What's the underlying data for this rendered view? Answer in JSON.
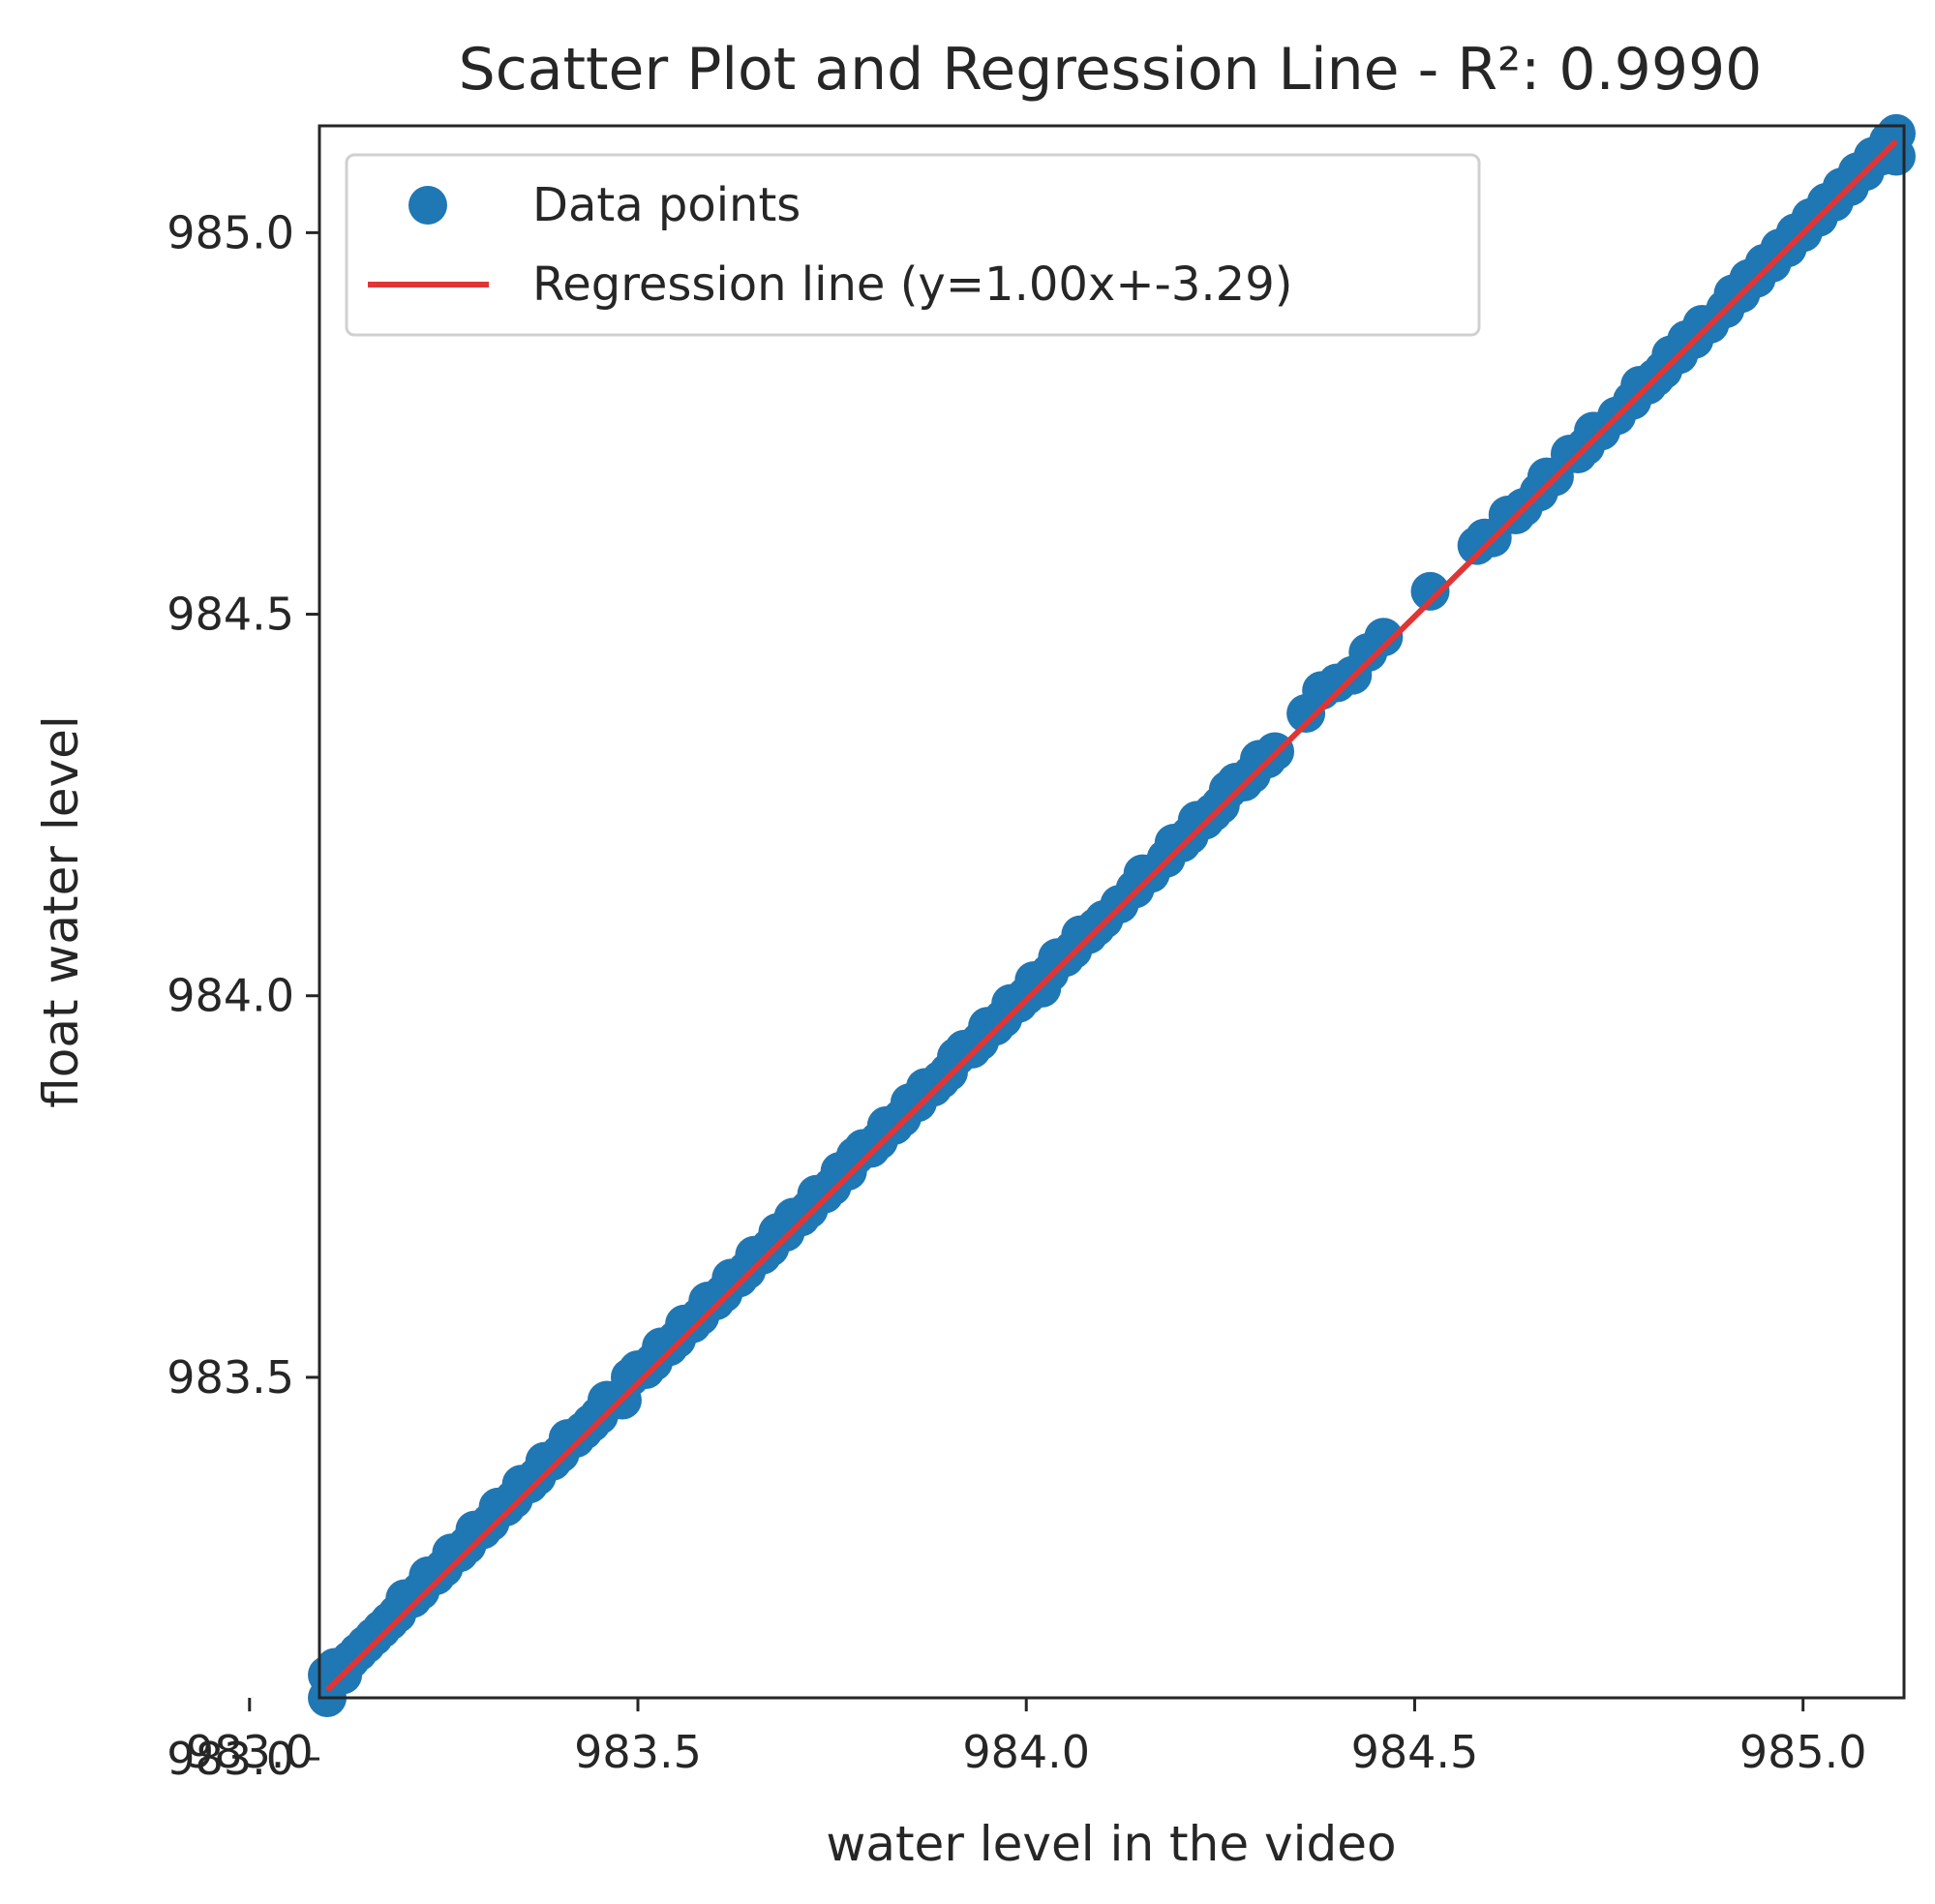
{
  "chart_data": {
    "type": "scatter",
    "title": "Scatter Plot and Regression Line - R²: 0.9990",
    "xlabel": "water level in the video",
    "ylabel": "float water level",
    "xlim": [
      983.09,
      985.13
    ],
    "ylim": [
      983.08,
      985.14
    ],
    "xticks": [
      "983.0",
      "983.5",
      "984.0",
      "984.5",
      "985.0"
    ],
    "yticks": [
      "983.0",
      "983.5",
      "984.0",
      "984.5",
      "985.0"
    ],
    "grid": false,
    "legend_position": "top-left",
    "series": [
      {
        "name": "Data points",
        "kind": "scatter",
        "color": "#1f77b4",
        "x": [
          983.1,
          983.1,
          983.11,
          983.12,
          983.13,
          983.14,
          983.15,
          983.16,
          983.17,
          983.18,
          983.19,
          983.2,
          983.21,
          983.22,
          983.23,
          983.24,
          983.25,
          983.26,
          983.27,
          983.28,
          983.29,
          983.3,
          983.31,
          983.32,
          983.33,
          983.34,
          983.35,
          983.36,
          983.37,
          983.38,
          983.39,
          983.4,
          983.41,
          983.42,
          983.43,
          983.44,
          983.45,
          983.46,
          983.47,
          983.48,
          983.49,
          983.5,
          983.51,
          983.52,
          983.53,
          983.54,
          983.55,
          983.56,
          983.57,
          983.58,
          983.59,
          983.6,
          983.61,
          983.62,
          983.63,
          983.64,
          983.65,
          983.66,
          983.67,
          983.68,
          983.69,
          983.7,
          983.71,
          983.72,
          983.73,
          983.74,
          983.75,
          983.76,
          983.77,
          983.78,
          983.79,
          983.8,
          983.81,
          983.82,
          983.83,
          983.84,
          983.85,
          983.86,
          983.87,
          983.88,
          983.89,
          983.9,
          983.91,
          983.92,
          983.93,
          983.94,
          983.95,
          983.96,
          983.97,
          983.98,
          983.99,
          984.0,
          984.01,
          984.02,
          984.03,
          984.04,
          984.05,
          984.06,
          984.07,
          984.08,
          984.09,
          984.1,
          984.12,
          984.14,
          984.15,
          984.16,
          984.18,
          984.19,
          984.2,
          984.21,
          984.22,
          984.23,
          984.24,
          984.25,
          984.26,
          984.27,
          984.28,
          984.29,
          984.3,
          984.31,
          984.32,
          984.36,
          984.38,
          984.4,
          984.42,
          984.44,
          984.46,
          984.52,
          984.58,
          984.59,
          984.6,
          984.62,
          984.63,
          984.64,
          984.66,
          984.67,
          984.68,
          984.7,
          984.71,
          984.72,
          984.73,
          984.74,
          984.76,
          984.78,
          984.79,
          984.8,
          984.81,
          984.82,
          984.83,
          984.84,
          984.85,
          984.86,
          984.87,
          984.88,
          984.9,
          984.91,
          984.92,
          984.93,
          984.94,
          984.95,
          984.96,
          984.97,
          984.98,
          984.99,
          985.0,
          985.01,
          985.02,
          985.03,
          985.04,
          985.05,
          985.06,
          985.07,
          985.08,
          985.09,
          985.1,
          985.11,
          985.12,
          985.12
        ],
        "y": [
          983.11,
          983.08,
          983.12,
          983.11,
          983.13,
          983.14,
          983.15,
          983.16,
          983.17,
          983.18,
          983.19,
          983.21,
          983.21,
          983.22,
          983.24,
          983.24,
          983.25,
          983.27,
          983.27,
          983.28,
          983.3,
          983.3,
          983.31,
          983.33,
          983.33,
          983.34,
          983.36,
          983.36,
          983.37,
          983.39,
          983.39,
          983.4,
          983.42,
          983.42,
          983.43,
          983.44,
          983.45,
          983.47,
          983.47,
          983.47,
          983.5,
          983.51,
          983.51,
          983.52,
          983.54,
          983.54,
          983.55,
          983.57,
          983.57,
          983.58,
          983.6,
          983.6,
          983.61,
          983.63,
          983.63,
          983.64,
          983.66,
          983.66,
          983.67,
          983.69,
          983.69,
          983.71,
          983.71,
          983.72,
          983.74,
          983.74,
          983.75,
          983.77,
          983.77,
          983.79,
          983.8,
          983.8,
          983.81,
          983.83,
          983.83,
          983.84,
          983.86,
          983.86,
          983.88,
          983.88,
          983.89,
          983.9,
          983.92,
          983.93,
          983.93,
          983.94,
          983.96,
          983.96,
          983.97,
          983.99,
          983.99,
          984.0,
          984.02,
          984.01,
          984.03,
          984.05,
          984.05,
          984.06,
          984.08,
          984.08,
          984.09,
          984.1,
          984.12,
          984.14,
          984.16,
          984.16,
          984.18,
          984.2,
          984.2,
          984.21,
          984.23,
          984.23,
          984.24,
          984.25,
          984.27,
          984.28,
          984.28,
          984.29,
          984.31,
          984.31,
          984.32,
          984.37,
          984.4,
          984.41,
          984.42,
          984.45,
          984.47,
          984.53,
          984.59,
          984.6,
          984.6,
          984.63,
          984.63,
          984.64,
          984.66,
          984.68,
          984.68,
          984.71,
          984.71,
          984.72,
          984.74,
          984.74,
          984.76,
          984.78,
          984.8,
          984.8,
          984.81,
          984.82,
          984.84,
          984.84,
          984.86,
          984.86,
          984.88,
          984.88,
          984.9,
          984.92,
          984.92,
          984.94,
          984.94,
          984.96,
          984.96,
          984.98,
          984.98,
          985.0,
          985.0,
          985.02,
          985.02,
          985.04,
          985.04,
          985.06,
          985.06,
          985.08,
          985.08,
          985.1,
          985.1,
          985.12,
          985.13,
          985.1
        ]
      },
      {
        "name": "Regression line (y=1.00x+-3.29)",
        "kind": "line",
        "color": "#e03535",
        "x": [
          983.1,
          985.12
        ],
        "y": [
          983.09,
          985.12
        ]
      }
    ]
  }
}
